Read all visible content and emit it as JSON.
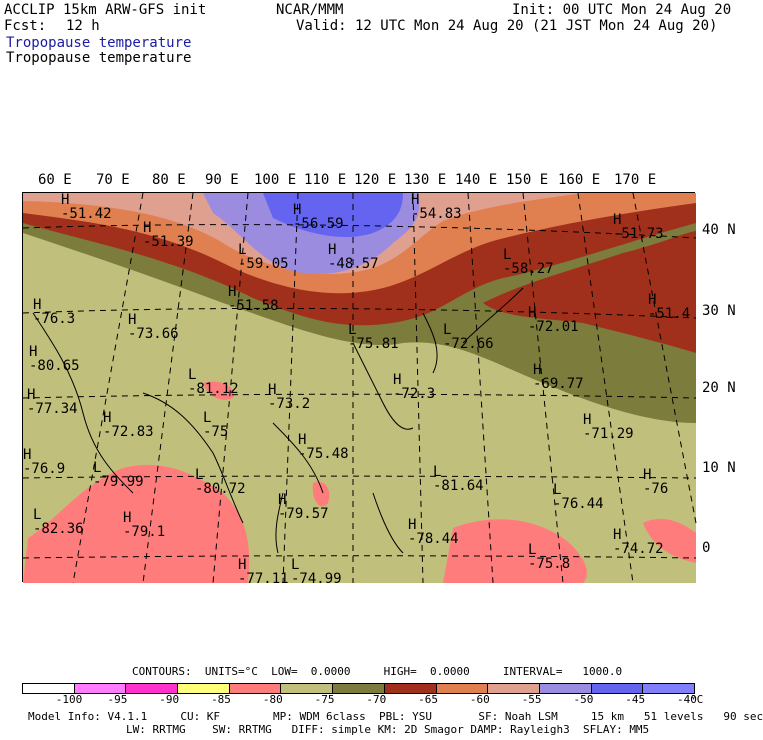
{
  "header": {
    "model": "ACCLIP 15km ARW-GFS init",
    "org": "NCAR/MMM",
    "init": "Init: 00 UTC Mon 24 Aug 20",
    "fcst_label": "Fcst:",
    "fcst_value": "12 h",
    "valid": "Valid: 12 UTC Mon 24 Aug 20 (21 JST Mon 24 Aug 20)",
    "field_shaded": "Tropopause temperature",
    "field_contour": "Tropopause temperature"
  },
  "map": {
    "lon_labels": [
      "60 E",
      "70 E",
      "80 E",
      "90 E",
      "100 E",
      "110 E",
      "120 E",
      "130 E",
      "140 E",
      "150 E",
      "160 E",
      "170 E"
    ],
    "lat_labels": [
      "40 N",
      "30 N",
      "20 N",
      "10 N",
      "0"
    ],
    "extrema": [
      {
        "t": "H",
        "v": "-51.42"
      },
      {
        "t": "H",
        "v": "-51.39"
      },
      {
        "t": "L",
        "v": "-59.05"
      },
      {
        "t": "H",
        "v": "-56.59"
      },
      {
        "t": "H",
        "v": "-48.57"
      },
      {
        "t": "H",
        "v": "-51.58"
      },
      {
        "t": "H",
        "v": "-54.83"
      },
      {
        "t": "L",
        "v": "-58.27"
      },
      {
        "t": "H",
        "v": "-51.73"
      },
      {
        "t": "H",
        "v": "-51.4"
      },
      {
        "t": "H",
        "v": "-76.3"
      },
      {
        "t": "H",
        "v": "-73.66"
      },
      {
        "t": "H",
        "v": "-80.65"
      },
      {
        "t": "L",
        "v": "-75.81"
      },
      {
        "t": "L",
        "v": "-72.66"
      },
      {
        "t": "H",
        "v": "-72.01"
      },
      {
        "t": "L",
        "v": "-81.12"
      },
      {
        "t": "H",
        "v": "-73.2"
      },
      {
        "t": "H",
        "v": "-72.3"
      },
      {
        "t": "H",
        "v": "-69.77"
      },
      {
        "t": "H",
        "v": "-77.34"
      },
      {
        "t": "H",
        "v": "-72.83"
      },
      {
        "t": "L",
        "v": "-75"
      },
      {
        "t": "H",
        "v": "-71.29"
      },
      {
        "t": "H",
        "v": "-76.9"
      },
      {
        "t": "H",
        "v": "-75.48"
      },
      {
        "t": "L",
        "v": "-79.99"
      },
      {
        "t": "L",
        "v": "-80.72"
      },
      {
        "t": "L",
        "v": "-81.64"
      },
      {
        "t": "H",
        "v": "-76"
      },
      {
        "t": "H",
        "v": "-79.57"
      },
      {
        "t": "L",
        "v": "-76.44"
      },
      {
        "t": "L",
        "v": "-82.36"
      },
      {
        "t": "H",
        "v": "-79.1"
      },
      {
        "t": "H",
        "v": "-78.44"
      },
      {
        "t": "H",
        "v": "-74.72"
      },
      {
        "t": "L",
        "v": "-75.8"
      },
      {
        "t": "H",
        "v": "-77.11"
      },
      {
        "t": "L",
        "v": "-74.99"
      }
    ]
  },
  "contours": {
    "line": "CONTOURS:  UNITS=°C  LOW=  0.0000     HIGH=  0.0000     INTERVAL=   1000.0"
  },
  "colorbar": {
    "colors": [
      "#ffffff",
      "#ff7cff",
      "#ff33cc",
      "#ffff7c",
      "#ff7c7c",
      "#c0c07c",
      "#7c7c3c",
      "#a0301c",
      "#e08050",
      "#e0a090",
      "#9c8ce0",
      "#6464f0",
      "#8080ff"
    ],
    "labels": [
      "-100",
      "-95",
      "-90",
      "-85",
      "-80",
      "-75",
      "-70",
      "-65",
      "-60",
      "-55",
      "-50",
      "-45",
      "-40"
    ],
    "unit": "°C"
  },
  "footer": {
    "line1": "Model Info: V4.1.1     CU: KF        MP: WDM 6class  PBL: YSU       SF: Noah LSM     15 km   51 levels   90 sec",
    "line2": "LW: RRTMG    SW: RRTMG   DIFF: simple KM: 2D Smagor DAMP: Rayleigh3  SFLAY: MM5"
  }
}
